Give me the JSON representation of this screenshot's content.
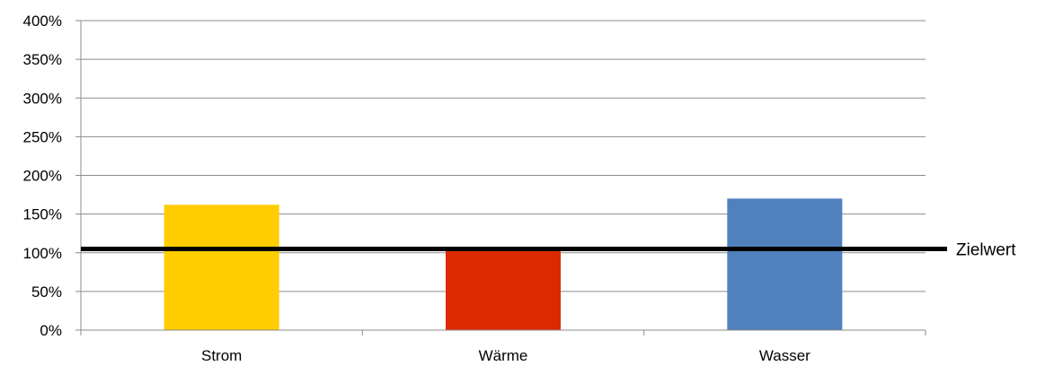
{
  "chart_data": {
    "type": "bar",
    "categories": [
      "Strom",
      "Wärme",
      "Wasser"
    ],
    "values": [
      162,
      102,
      170
    ],
    "colors": [
      "#FFCC00",
      "#DD2900",
      "#4F81BD"
    ],
    "y_ticks": [
      "0%",
      "50%",
      "100%",
      "150%",
      "200%",
      "250%",
      "300%",
      "350%",
      "400%"
    ],
    "ylim": [
      0,
      400
    ],
    "y_unit": "%",
    "grid": true,
    "reference_line": {
      "value": 105,
      "label": "Zielwert",
      "color": "#000000"
    }
  }
}
